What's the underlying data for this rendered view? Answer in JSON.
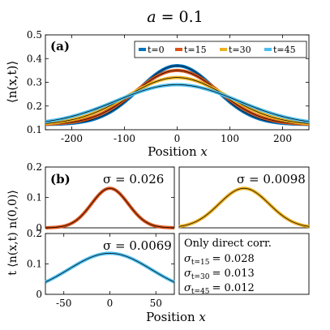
{
  "figure": {
    "title": "a = 0.1",
    "title_var": "a",
    "title_eq": " = 0.1"
  },
  "chart_data": [
    {
      "id": "a",
      "panel_label": "(a)",
      "type": "line",
      "xlabel": "Position x",
      "xlabel_word": "Position",
      "xlabel_var": "x",
      "ylabel": "⟨n(x,t)⟩",
      "xlim": [
        -250,
        250
      ],
      "ylim": [
        0.1,
        0.5
      ],
      "xticks": [
        -200,
        -100,
        0,
        100,
        200
      ],
      "xtick_labels": [
        "-200",
        "-100",
        "0",
        "100",
        "200"
      ],
      "yticks": [
        0.1,
        0.2,
        0.3,
        0.4,
        0.5
      ],
      "ytick_labels": [
        "0.1",
        "0.2",
        "0.3",
        "0.4",
        "0.5"
      ],
      "grid": false,
      "legend_position": "top-right",
      "series": [
        {
          "name": "t=0",
          "color": "#0072BD",
          "peak": 0.37,
          "baseline": 0.122,
          "width": 72
        },
        {
          "name": "t=15",
          "color": "#D95319",
          "peak": 0.35,
          "baseline": 0.122,
          "width": 80
        },
        {
          "name": "t=30",
          "color": "#EDB120",
          "peak": 0.32,
          "baseline": 0.12,
          "width": 95
        },
        {
          "name": "t=45",
          "color": "#4DBEEE",
          "peak": 0.29,
          "baseline": 0.118,
          "width": 115
        }
      ]
    },
    {
      "id": "b1",
      "panel_label": "(b)",
      "type": "line",
      "ylabel": "t ⟨n(x,t) n(0,0)⟩",
      "xlim": [
        -70,
        70
      ],
      "ylim": [
        0,
        0.2
      ],
      "yticks": [
        0,
        0.1,
        0.2
      ],
      "ytick_labels": [
        "0",
        "0.1",
        "0.2"
      ],
      "annotation": "σ = 0.026",
      "series": [
        {
          "name": "t=15",
          "color": "#D95319",
          "peak": 0.13,
          "width": 20,
          "baseline": 0
        }
      ]
    },
    {
      "id": "b2",
      "type": "line",
      "xlim": [
        -70,
        70
      ],
      "ylim": [
        0,
        0.2
      ],
      "annotation": "σ = 0.0098",
      "series": [
        {
          "name": "t=30",
          "color": "#EDB120",
          "peak": 0.13,
          "width": 27,
          "baseline": 0
        }
      ]
    },
    {
      "id": "b3",
      "type": "line",
      "xlabel": "Position x",
      "xlabel_word": "Position",
      "xlabel_var": "x",
      "xlim": [
        -70,
        70
      ],
      "ylim": [
        0,
        0.2
      ],
      "xticks": [
        -50,
        0,
        50
      ],
      "xtick_labels": [
        "-50",
        "0",
        "50"
      ],
      "yticks": [
        0,
        0.1,
        0.2
      ],
      "ytick_labels": [
        "0",
        "0.1",
        "0.2"
      ],
      "annotation": "σ = 0.0069",
      "series": [
        {
          "name": "t=45",
          "color": "#4DBEEE",
          "peak": 0.135,
          "width": 45,
          "baseline": 0
        }
      ]
    }
  ],
  "info_box": {
    "title": "Only direct corr.",
    "lines": [
      {
        "sub": "t=15",
        "value": "= 0.028"
      },
      {
        "sub": "t=30",
        "value": "= 0.013"
      },
      {
        "sub": "t=45",
        "value": "= 0.012"
      }
    ]
  }
}
